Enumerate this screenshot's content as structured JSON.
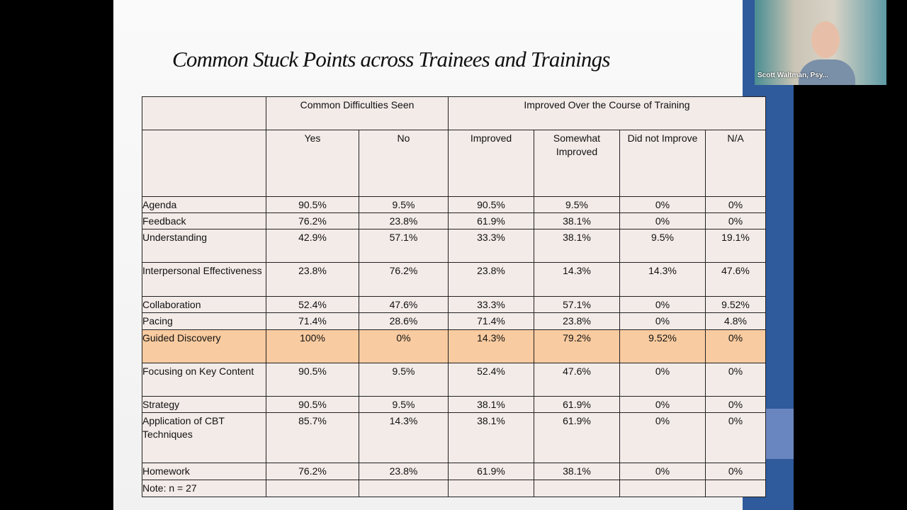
{
  "slide": {
    "title": "Common Stuck Points across Trainees and Trainings",
    "table": {
      "groups": [
        "Common Difficulties Seen",
        "Improved Over the Course of Training"
      ],
      "columns": [
        "Yes",
        "No",
        "Improved",
        "Somewhat Improved",
        "Did not Improve",
        "N/A"
      ],
      "rows": [
        {
          "name": "Agenda",
          "values": [
            "90.5%",
            "9.5%",
            "90.5%",
            "9.5%",
            "0%",
            "0%"
          ]
        },
        {
          "name": "Feedback",
          "values": [
            "76.2%",
            "23.8%",
            "61.9%",
            "38.1%",
            "0%",
            "0%"
          ]
        },
        {
          "name": "Understanding",
          "values": [
            "42.9%",
            "57.1%",
            "33.3%",
            "38.1%",
            "9.5%",
            "19.1%"
          ]
        },
        {
          "name": "Interpersonal Effectiveness",
          "values": [
            "23.8%",
            "76.2%",
            "23.8%",
            "14.3%",
            "14.3%",
            "47.6%"
          ]
        },
        {
          "name": "Collaboration",
          "values": [
            "52.4%",
            "47.6%",
            "33.3%",
            "57.1%",
            "0%",
            "9.52%"
          ]
        },
        {
          "name": "Pacing",
          "values": [
            "71.4%",
            "28.6%",
            "71.4%",
            "23.8%",
            "0%",
            "4.8%"
          ]
        },
        {
          "name": "Guided Discovery",
          "values": [
            "100%",
            "0%",
            "14.3%",
            "79.2%",
            "9.52%",
            "0%"
          ],
          "highlight": true
        },
        {
          "name": "Focusing on Key Content",
          "values": [
            "90.5%",
            "9.5%",
            "52.4%",
            "47.6%",
            "0%",
            "0%"
          ]
        },
        {
          "name": "Strategy",
          "values": [
            "90.5%",
            "9.5%",
            "38.1%",
            "61.9%",
            "0%",
            "0%"
          ]
        },
        {
          "name": "Application of CBT Techniques",
          "values": [
            "85.7%",
            "14.3%",
            "38.1%",
            "61.9%",
            "0%",
            "0%"
          ]
        },
        {
          "name": "Homework",
          "values": [
            "76.2%",
            "23.8%",
            "61.9%",
            "38.1%",
            "0%",
            "0%"
          ]
        }
      ],
      "note": "Note: n = 27"
    }
  },
  "webcam": {
    "name": "Scott Waltman, Psy..."
  }
}
